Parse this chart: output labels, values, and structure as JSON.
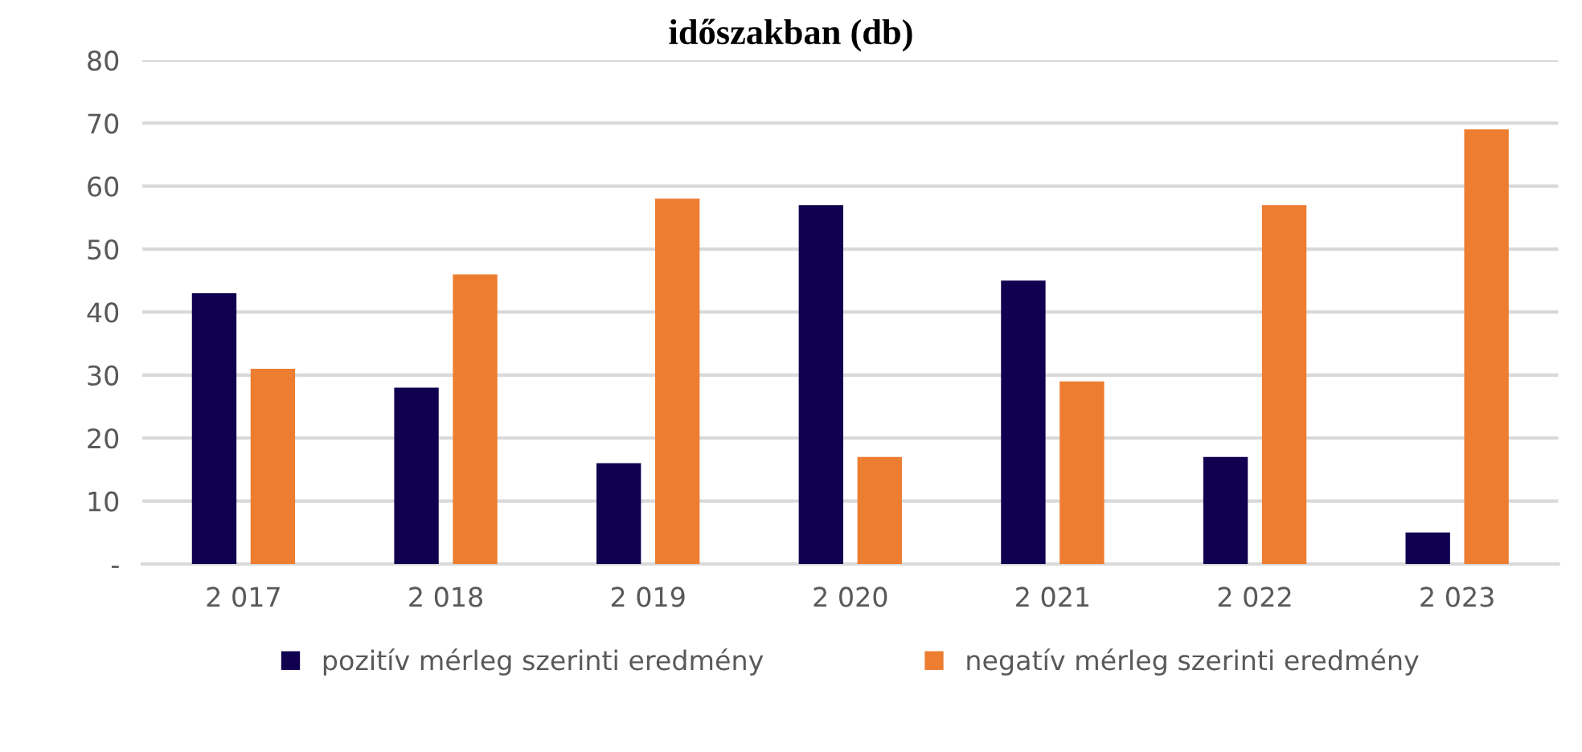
{
  "chart_data": {
    "type": "bar",
    "title": "időszakban (db)",
    "categories": [
      "2 017",
      "2 018",
      "2 019",
      "2 020",
      "2 021",
      "2 022",
      "2 023"
    ],
    "series": [
      {
        "name": "pozitív mérleg szerinti eredmény",
        "color": "#10004f",
        "values": [
          43,
          28,
          16,
          57,
          45,
          17,
          5
        ]
      },
      {
        "name": "negatív mérleg szerinti eredmény",
        "color": "#ed7d31",
        "values": [
          31,
          46,
          58,
          17,
          29,
          57,
          69
        ]
      }
    ],
    "ylim": [
      0,
      80
    ],
    "yticks": [
      {
        "value": 0,
        "label": "-"
      },
      10,
      20,
      30,
      40,
      50,
      60,
      70,
      80
    ],
    "grid": "y",
    "legend": "bottom"
  }
}
